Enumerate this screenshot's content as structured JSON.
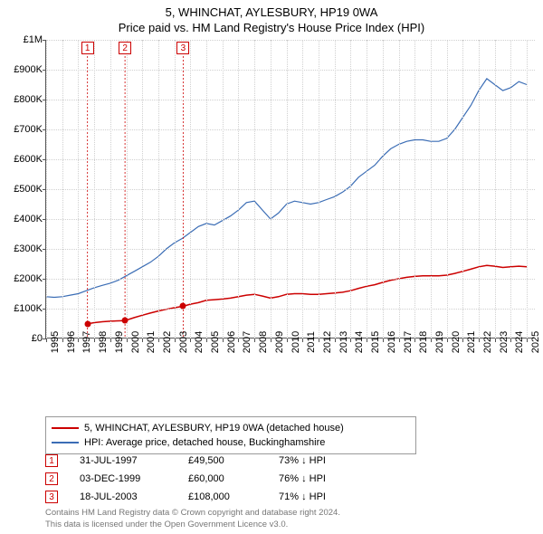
{
  "title_main": "5, WHINCHAT, AYLESBURY, HP19 0WA",
  "title_sub": "Price paid vs. HM Land Registry's House Price Index (HPI)",
  "chart": {
    "type": "line",
    "background_color": "#ffffff",
    "grid_color": "#d0d0d0",
    "axis_color": "#555555",
    "x": {
      "min": 1995,
      "max": 2025.5,
      "ticks": [
        1995,
        1996,
        1997,
        1998,
        1999,
        2000,
        2001,
        2002,
        2003,
        2004,
        2005,
        2006,
        2007,
        2008,
        2009,
        2010,
        2011,
        2012,
        2013,
        2014,
        2015,
        2016,
        2017,
        2018,
        2019,
        2020,
        2021,
        2022,
        2023,
        2024,
        2025
      ]
    },
    "y": {
      "min": 0,
      "max": 1000000,
      "ticks": [
        0,
        100000,
        200000,
        300000,
        400000,
        500000,
        600000,
        700000,
        800000,
        900000,
        1000000
      ],
      "labels": [
        "£0",
        "£100K",
        "£200K",
        "£300K",
        "£400K",
        "£500K",
        "£600K",
        "£700K",
        "£800K",
        "£900K",
        "£1M"
      ]
    },
    "series": [
      {
        "name": "property",
        "label": "5, WHINCHAT, AYLESBURY, HP19 0WA (detached house)",
        "color": "#cc0000",
        "line_width": 1.5,
        "points": [
          [
            1997.58,
            49500
          ],
          [
            1998.0,
            53000
          ],
          [
            1998.5,
            56000
          ],
          [
            1999.0,
            58000
          ],
          [
            1999.5,
            59000
          ],
          [
            1999.92,
            60000
          ],
          [
            2000.5,
            70000
          ],
          [
            2001.0,
            78000
          ],
          [
            2001.5,
            85000
          ],
          [
            2002.0,
            92000
          ],
          [
            2002.5,
            98000
          ],
          [
            2003.0,
            103000
          ],
          [
            2003.55,
            108000
          ],
          [
            2004.0,
            115000
          ],
          [
            2004.5,
            120000
          ],
          [
            2005.0,
            128000
          ],
          [
            2005.5,
            130000
          ],
          [
            2006.0,
            132000
          ],
          [
            2006.5,
            135000
          ],
          [
            2007.0,
            140000
          ],
          [
            2007.5,
            145000
          ],
          [
            2008.0,
            148000
          ],
          [
            2008.5,
            142000
          ],
          [
            2009.0,
            135000
          ],
          [
            2009.5,
            140000
          ],
          [
            2010.0,
            148000
          ],
          [
            2010.5,
            150000
          ],
          [
            2011.0,
            150000
          ],
          [
            2011.5,
            148000
          ],
          [
            2012.0,
            148000
          ],
          [
            2012.5,
            150000
          ],
          [
            2013.0,
            152000
          ],
          [
            2013.5,
            155000
          ],
          [
            2014.0,
            160000
          ],
          [
            2014.5,
            168000
          ],
          [
            2015.0,
            175000
          ],
          [
            2015.5,
            180000
          ],
          [
            2016.0,
            188000
          ],
          [
            2016.5,
            195000
          ],
          [
            2017.0,
            200000
          ],
          [
            2017.5,
            205000
          ],
          [
            2018.0,
            208000
          ],
          [
            2018.5,
            210000
          ],
          [
            2019.0,
            210000
          ],
          [
            2019.5,
            210000
          ],
          [
            2020.0,
            212000
          ],
          [
            2020.5,
            218000
          ],
          [
            2021.0,
            225000
          ],
          [
            2021.5,
            232000
          ],
          [
            2022.0,
            240000
          ],
          [
            2022.5,
            245000
          ],
          [
            2023.0,
            242000
          ],
          [
            2023.5,
            238000
          ],
          [
            2024.0,
            240000
          ],
          [
            2024.5,
            242000
          ],
          [
            2025.0,
            240000
          ]
        ]
      },
      {
        "name": "hpi",
        "label": "HPI: Average price, detached house, Buckinghamshire",
        "color": "#3b6db5",
        "line_width": 1.2,
        "points": [
          [
            1995.0,
            140000
          ],
          [
            1995.5,
            138000
          ],
          [
            1996.0,
            140000
          ],
          [
            1996.5,
            145000
          ],
          [
            1997.0,
            150000
          ],
          [
            1997.5,
            160000
          ],
          [
            1998.0,
            170000
          ],
          [
            1998.5,
            178000
          ],
          [
            1999.0,
            185000
          ],
          [
            1999.5,
            195000
          ],
          [
            2000.0,
            210000
          ],
          [
            2000.5,
            225000
          ],
          [
            2001.0,
            240000
          ],
          [
            2001.5,
            255000
          ],
          [
            2002.0,
            275000
          ],
          [
            2002.5,
            300000
          ],
          [
            2003.0,
            320000
          ],
          [
            2003.5,
            335000
          ],
          [
            2004.0,
            355000
          ],
          [
            2004.5,
            375000
          ],
          [
            2005.0,
            385000
          ],
          [
            2005.5,
            380000
          ],
          [
            2006.0,
            395000
          ],
          [
            2006.5,
            410000
          ],
          [
            2007.0,
            430000
          ],
          [
            2007.5,
            455000
          ],
          [
            2008.0,
            460000
          ],
          [
            2008.5,
            430000
          ],
          [
            2009.0,
            400000
          ],
          [
            2009.5,
            420000
          ],
          [
            2010.0,
            450000
          ],
          [
            2010.5,
            460000
          ],
          [
            2011.0,
            455000
          ],
          [
            2011.5,
            450000
          ],
          [
            2012.0,
            455000
          ],
          [
            2012.5,
            465000
          ],
          [
            2013.0,
            475000
          ],
          [
            2013.5,
            490000
          ],
          [
            2014.0,
            510000
          ],
          [
            2014.5,
            540000
          ],
          [
            2015.0,
            560000
          ],
          [
            2015.5,
            580000
          ],
          [
            2016.0,
            610000
          ],
          [
            2016.5,
            635000
          ],
          [
            2017.0,
            650000
          ],
          [
            2017.5,
            660000
          ],
          [
            2018.0,
            665000
          ],
          [
            2018.5,
            665000
          ],
          [
            2019.0,
            660000
          ],
          [
            2019.5,
            660000
          ],
          [
            2020.0,
            670000
          ],
          [
            2020.5,
            700000
          ],
          [
            2021.0,
            740000
          ],
          [
            2021.5,
            780000
          ],
          [
            2022.0,
            830000
          ],
          [
            2022.5,
            870000
          ],
          [
            2023.0,
            850000
          ],
          [
            2023.5,
            830000
          ],
          [
            2024.0,
            840000
          ],
          [
            2024.5,
            860000
          ],
          [
            2025.0,
            850000
          ]
        ]
      }
    ],
    "sale_markers": [
      {
        "n": "1",
        "year": 1997.58,
        "price": 49500,
        "color": "#cc0000"
      },
      {
        "n": "2",
        "year": 1999.92,
        "price": 60000,
        "color": "#cc0000"
      },
      {
        "n": "3",
        "year": 2003.55,
        "price": 108000,
        "color": "#cc0000"
      }
    ]
  },
  "legend": {
    "items": [
      {
        "color": "#cc0000",
        "label": "5, WHINCHAT, AYLESBURY, HP19 0WA (detached house)"
      },
      {
        "color": "#3b6db5",
        "label": "HPI: Average price, detached house, Buckinghamshire"
      }
    ]
  },
  "sales_table": [
    {
      "n": "1",
      "color": "#cc0000",
      "date": "31-JUL-1997",
      "price": "£49,500",
      "diff": "73% ↓ HPI"
    },
    {
      "n": "2",
      "color": "#cc0000",
      "date": "03-DEC-1999",
      "price": "£60,000",
      "diff": "76% ↓ HPI"
    },
    {
      "n": "3",
      "color": "#cc0000",
      "date": "18-JUL-2003",
      "price": "£108,000",
      "diff": "71% ↓ HPI"
    }
  ],
  "footer_line1": "Contains HM Land Registry data © Crown copyright and database right 2024.",
  "footer_line2": "This data is licensed under the Open Government Licence v3.0."
}
